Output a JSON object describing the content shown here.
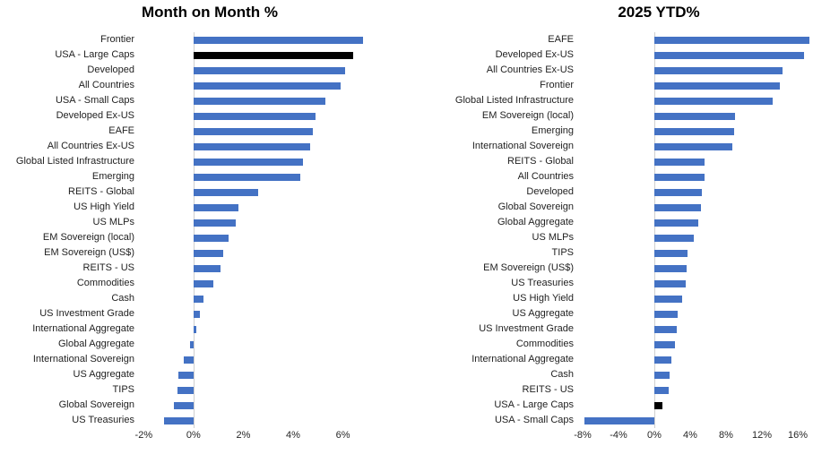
{
  "page": {
    "background": "#ffffff",
    "text_color": "#1f1f1f",
    "title_color": "#000000",
    "axis_line_color": "#cfcfcf"
  },
  "chart_data": [
    {
      "id": "mom",
      "type": "bar",
      "orientation": "horizontal",
      "title": "Month on Month %",
      "bar_color": "#4472C4",
      "highlight_color": "#000000",
      "highlight_category": "USA - Large Caps",
      "highlight_index": 1,
      "legend": "none",
      "grid": false,
      "axis": {
        "unit": "%",
        "min": -2.3,
        "max": 8.5,
        "ticks": [
          {
            "label": "-2%",
            "value": -2
          },
          {
            "label": "0%",
            "value": 0
          },
          {
            "label": "2%",
            "value": 2
          },
          {
            "label": "4%",
            "value": 4
          },
          {
            "label": "6%",
            "value": 6
          }
        ]
      },
      "categories": [
        "Frontier",
        "USA - Large Caps",
        "Developed",
        "All Countries",
        "USA - Small Caps",
        "Developed Ex-US",
        "EAFE",
        "All Countries Ex-US",
        "Global Listed Infrastructure",
        "Emerging",
        "REITS - Global",
        "US High Yield",
        "US MLPs",
        "EM Sovereign (local)",
        "EM Sovereign (US$)",
        "REITS - US",
        "Commodities",
        "Cash",
        "US Investment Grade",
        "International Aggregate",
        "Global Aggregate",
        "International Sovereign",
        "US Aggregate",
        "TIPS",
        "Global Sovereign",
        "US Treasuries"
      ],
      "values": [
        6.8,
        6.4,
        6.1,
        5.9,
        5.3,
        4.9,
        4.8,
        4.7,
        4.4,
        4.3,
        2.6,
        1.8,
        1.7,
        1.4,
        1.2,
        1.1,
        0.8,
        0.4,
        0.25,
        0.1,
        -0.15,
        -0.4,
        -0.6,
        -0.65,
        -0.8,
        -1.2
      ]
    },
    {
      "id": "ytd",
      "type": "bar",
      "orientation": "horizontal",
      "title": "2025 YTD%",
      "bar_color": "#4472C4",
      "highlight_color": "#000000",
      "highlight_category": "USA - Large Caps",
      "highlight_index": 24,
      "legend": "none",
      "grid": false,
      "axis": {
        "unit": "%",
        "min": -8,
        "max": 17.6,
        "ticks": [
          {
            "label": "-8%",
            "value": -8
          },
          {
            "label": "-4%",
            "value": -4
          },
          {
            "label": "0%",
            "value": 0
          },
          {
            "label": "4%",
            "value": 4
          },
          {
            "label": "8%",
            "value": 8
          },
          {
            "label": "12%",
            "value": 12
          },
          {
            "label": "16%",
            "value": 16
          }
        ]
      },
      "categories": [
        "EAFE",
        "Developed Ex-US",
        "All Countries Ex-US",
        "Frontier",
        "Global Listed Infrastructure",
        "EM Sovereign (local)",
        "Emerging",
        "International Sovereign",
        "REITS - Global",
        "All Countries",
        "Developed",
        "Global Sovereign",
        "Global Aggregate",
        "US MLPs",
        "TIPS",
        "EM Sovereign (US$)",
        "US Treasuries",
        "US High Yield",
        "US Aggregate",
        "US Investment Grade",
        "Commodities",
        "International Aggregate",
        "Cash",
        "REITS - US",
        "USA - Large Caps",
        "USA - Small Caps"
      ],
      "values": [
        17.3,
        16.7,
        14.3,
        14.0,
        13.2,
        9.0,
        8.9,
        8.7,
        5.6,
        5.6,
        5.3,
        5.2,
        4.9,
        4.4,
        3.7,
        3.6,
        3.5,
        3.1,
        2.6,
        2.5,
        2.3,
        1.9,
        1.7,
        1.6,
        0.9,
        -7.8
      ]
    }
  ]
}
